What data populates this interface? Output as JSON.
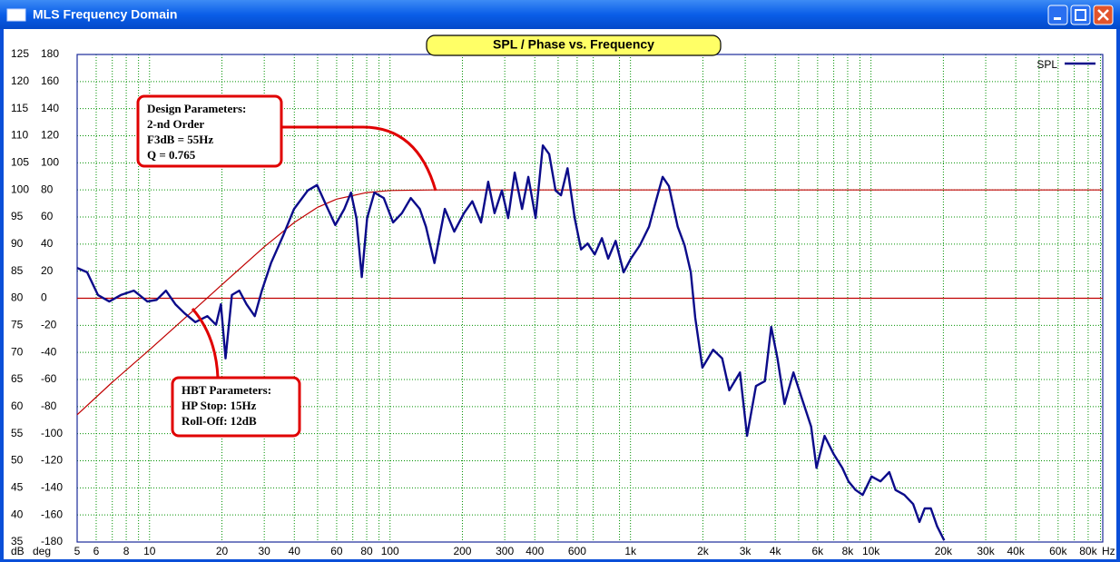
{
  "window_title": "MLS Frequency Domain",
  "chart_data": {
    "type": "line",
    "title": "SPL / Phase vs. Frequency",
    "xscale": "log",
    "xlim": [
      5,
      92000
    ],
    "ylim": [
      35,
      125
    ],
    "y2lim": [
      -180,
      180
    ],
    "xunit": "Hz",
    "yunit": "dB",
    "y2unit": "deg",
    "xticks": [
      5,
      6,
      8,
      10,
      20,
      30,
      40,
      60,
      80,
      100,
      200,
      300,
      400,
      600,
      {
        "value": 1000,
        "label": "1k"
      },
      {
        "value": 2000,
        "label": "2k"
      },
      {
        "value": 3000,
        "label": "3k"
      },
      {
        "value": 4000,
        "label": "4k"
      },
      {
        "value": 6000,
        "label": "6k"
      },
      {
        "value": 8000,
        "label": "8k"
      },
      {
        "value": 10000,
        "label": "10k"
      },
      {
        "value": 20000,
        "label": "20k"
      },
      {
        "value": 30000,
        "label": "30k"
      },
      {
        "value": 40000,
        "label": "40k"
      },
      {
        "value": 60000,
        "label": "60k"
      },
      {
        "value": 80000,
        "label": "80k"
      }
    ],
    "xminorticks": [
      7,
      9,
      50,
      70,
      90,
      500,
      700,
      900,
      5000,
      7000,
      9000,
      50000,
      70000,
      90000
    ],
    "yticks": [
      35,
      40,
      45,
      50,
      55,
      60,
      65,
      70,
      75,
      80,
      85,
      90,
      95,
      100,
      105,
      110,
      115,
      120,
      125
    ],
    "y2ticks": [
      -180,
      -160,
      -140,
      -120,
      -100,
      -80,
      -60,
      -40,
      -20,
      0,
      20,
      40,
      60,
      80,
      100,
      120,
      140,
      160,
      180
    ],
    "grid": true,
    "legend": "upper right",
    "series": [
      {
        "name": "SPL",
        "color": "#0b0b8a",
        "x": [
          5,
          5.5,
          6.1,
          6.8,
          7.6,
          8.6,
          9.8,
          10.7,
          11.7,
          12.8,
          14,
          15.5,
          17.4,
          18.9,
          19.8,
          20.7,
          22,
          23.6,
          25.3,
          27.4,
          29.3,
          32,
          35.9,
          39.9,
          45.5,
          49.7,
          54.1,
          59.2,
          64.6,
          68.8,
          72.5,
          76.3,
          80.3,
          86.1,
          94.2,
          103,
          112,
          122,
          133,
          141,
          153,
          169,
          185,
          203,
          220,
          239,
          256,
          272,
          292,
          310,
          330,
          354,
          376,
          403,
          432,
          459,
          488,
          514,
          547,
          586,
          623,
          663,
          710,
          761,
          808,
          867,
          936,
          1003,
          1095,
          1194,
          1280,
          1361,
          1445,
          1572,
          1677,
          1781,
          1859,
          1991,
          2206,
          2405,
          2575,
          2852,
          3054,
          3325,
          3620,
          3847,
          4085,
          4372,
          4758,
          5180,
          5639,
          5937,
          6413,
          6980,
          7598,
          8064,
          8631,
          9239,
          10060,
          10950,
          11920,
          12650,
          13770,
          14980,
          15900,
          16720,
          17740,
          18830,
          20150
        ],
        "values": [
          85.6,
          84.8,
          80.6,
          79.4,
          80.6,
          81.4,
          79.4,
          79.7,
          81.4,
          78.9,
          77.2,
          75.6,
          76.7,
          75.1,
          78.9,
          68.9,
          80.6,
          81.4,
          78.9,
          76.7,
          81.4,
          86.5,
          91.5,
          96.5,
          99.9,
          100.9,
          97.3,
          93.5,
          96.5,
          99.5,
          94.8,
          83.9,
          94.8,
          99.5,
          98.5,
          94,
          95.7,
          98.5,
          96.5,
          93.2,
          86.5,
          96.5,
          92.3,
          95.7,
          97.9,
          94,
          101.5,
          95.7,
          99.9,
          94.8,
          103.2,
          96.5,
          102.4,
          94.8,
          108.2,
          106.6,
          99.9,
          99,
          104,
          94.8,
          89,
          90.1,
          88.1,
          91.1,
          87.3,
          90.6,
          84.8,
          87.3,
          89.8,
          93.2,
          98.2,
          102.4,
          100.7,
          93.2,
          89.8,
          84.8,
          76.4,
          67.2,
          70.5,
          68.9,
          63,
          66.3,
          54.6,
          63.8,
          64.7,
          74.7,
          68.9,
          60.5,
          66.3,
          61.3,
          56.3,
          48.7,
          54.6,
          51.3,
          48.7,
          46.2,
          44.6,
          43.7,
          47.1,
          46.2,
          47.9,
          44.6,
          43.7,
          42,
          38.7,
          41.2,
          41.2,
          37.9,
          35.3
        ]
      },
      {
        "color": "#c00000",
        "x": [
          5,
          7,
          10,
          15,
          20,
          30,
          40,
          50,
          60,
          80,
          100,
          150,
          92000
        ],
        "values": [
          58.5,
          64.5,
          70.5,
          77.5,
          82.5,
          89.5,
          94,
          96.8,
          98.3,
          99.5,
          99.9,
          100,
          100
        ]
      },
      {
        "color": "#c00000",
        "x": [
          5,
          92000
        ],
        "values": [
          80,
          80
        ]
      }
    ],
    "annotations": [
      {
        "lines": [
          "Design Parameters:",
          "2-nd Order",
          "F3dB = 55Hz",
          "Q = 0.765"
        ]
      },
      {
        "lines": [
          "HBT Parameters:",
          "HP Stop: 15Hz",
          "Roll-Off: 12dB"
        ]
      }
    ]
  }
}
